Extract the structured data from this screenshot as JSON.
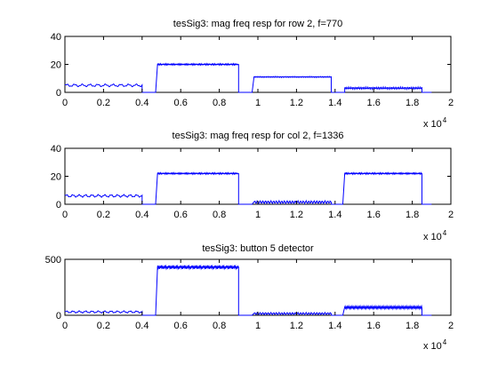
{
  "figure": {
    "background": "#ffffff",
    "line_color": "#0000ff"
  },
  "chart_data": [
    {
      "type": "line",
      "title": "tesSig3: mag freq resp for row 2, f=770",
      "xlabel": "",
      "ylabel": "",
      "xlim": [
        0,
        20000
      ],
      "ylim": [
        0,
        40
      ],
      "xticks": [
        0,
        2000,
        4000,
        6000,
        8000,
        10000,
        12000,
        14000,
        16000,
        18000,
        20000
      ],
      "xtick_labels": [
        "0",
        "0.2",
        "0.4",
        "0.6",
        "0.8",
        "1",
        "1.2",
        "1.4",
        "1.6",
        "1.8",
        "2"
      ],
      "yticks": [
        0,
        20,
        40
      ],
      "ytick_labels": [
        "0",
        "20",
        "40"
      ],
      "x_exponent": {
        "base": "x 10",
        "power": "4"
      },
      "grid": false,
      "series": [
        {
          "color": "#0000ff",
          "segments": [
            {
              "x0": 0,
              "x1": 4000,
              "level": 5,
              "ripple": 1.0,
              "period": 400
            },
            {
              "x0": 4000,
              "x1": 4700,
              "level": 0,
              "ripple": 0,
              "period": 400
            },
            {
              "x0": 4800,
              "x1": 9000,
              "level": 20,
              "ripple": 0.6,
              "period": 70
            },
            {
              "x0": 9000,
              "x1": 9700,
              "level": 0,
              "ripple": 0,
              "period": 400
            },
            {
              "x0": 9800,
              "x1": 13800,
              "level": 11,
              "ripple": 0.4,
              "period": 90
            },
            {
              "x0": 13800,
              "x1": 14500,
              "level": 0,
              "ripple": 0,
              "period": 400
            },
            {
              "x0": 14500,
              "x1": 18500,
              "level": 3,
              "ripple": 0.8,
              "period": 90
            },
            {
              "x0": 18500,
              "x1": 19000,
              "level": 0,
              "ripple": 0,
              "period": 400
            }
          ]
        }
      ]
    },
    {
      "type": "line",
      "title": "tesSig3: mag freq resp for col 2, f=1336",
      "xlabel": "",
      "ylabel": "",
      "xlim": [
        0,
        20000
      ],
      "ylim": [
        0,
        40
      ],
      "xticks": [
        0,
        2000,
        4000,
        6000,
        8000,
        10000,
        12000,
        14000,
        16000,
        18000,
        20000
      ],
      "xtick_labels": [
        "0",
        "0.2",
        "0.4",
        "0.6",
        "0.8",
        "1",
        "1.2",
        "1.4",
        "1.6",
        "1.8",
        "2"
      ],
      "yticks": [
        0,
        20,
        40
      ],
      "ytick_labels": [
        "0",
        "20",
        "40"
      ],
      "x_exponent": {
        "base": "x 10",
        "power": "4"
      },
      "grid": false,
      "series": [
        {
          "color": "#0000ff",
          "segments": [
            {
              "x0": 0,
              "x1": 4000,
              "level": 6,
              "ripple": 1.0,
              "period": 330
            },
            {
              "x0": 4000,
              "x1": 4700,
              "level": 0,
              "ripple": 0,
              "period": 400
            },
            {
              "x0": 4800,
              "x1": 9000,
              "level": 22,
              "ripple": 0.6,
              "period": 70
            },
            {
              "x0": 9000,
              "x1": 9700,
              "level": 0,
              "ripple": 0,
              "period": 400
            },
            {
              "x0": 9800,
              "x1": 13800,
              "level": 1.5,
              "ripple": 1.0,
              "period": 140
            },
            {
              "x0": 13800,
              "x1": 14400,
              "level": 0,
              "ripple": 0,
              "period": 400
            },
            {
              "x0": 14500,
              "x1": 18500,
              "level": 22,
              "ripple": 0.6,
              "period": 70
            },
            {
              "x0": 18500,
              "x1": 19000,
              "level": 0,
              "ripple": 0,
              "period": 400
            }
          ]
        }
      ]
    },
    {
      "type": "line",
      "title": "tesSig3: button 5 detector",
      "xlabel": "",
      "ylabel": "",
      "xlim": [
        0,
        20000
      ],
      "ylim": [
        0,
        500
      ],
      "xticks": [
        0,
        2000,
        4000,
        6000,
        8000,
        10000,
        12000,
        14000,
        16000,
        18000,
        20000
      ],
      "xtick_labels": [
        "0",
        "0.2",
        "0.4",
        "0.6",
        "0.8",
        "1",
        "1.2",
        "1.4",
        "1.6",
        "1.8",
        "2"
      ],
      "yticks": [
        0,
        500
      ],
      "ytick_labels": [
        "0",
        "500"
      ],
      "x_exponent": {
        "base": "x 10",
        "power": "4"
      },
      "grid": false,
      "series": [
        {
          "color": "#0000ff",
          "segments": [
            {
              "x0": 0,
              "x1": 4000,
              "level": 30,
              "ripple": 10,
              "period": 330
            },
            {
              "x0": 4000,
              "x1": 4700,
              "level": 0,
              "ripple": 0,
              "period": 400
            },
            {
              "x0": 4800,
              "x1": 9000,
              "level": 430,
              "ripple": 18,
              "period": 60
            },
            {
              "x0": 9000,
              "x1": 9700,
              "level": 0,
              "ripple": 0,
              "period": 400
            },
            {
              "x0": 9800,
              "x1": 13800,
              "level": 15,
              "ripple": 10,
              "period": 140
            },
            {
              "x0": 13800,
              "x1": 14400,
              "level": 0,
              "ripple": 0,
              "period": 400
            },
            {
              "x0": 14500,
              "x1": 18500,
              "level": 70,
              "ripple": 14,
              "period": 60
            },
            {
              "x0": 18500,
              "x1": 19000,
              "level": 0,
              "ripple": 0,
              "period": 400
            }
          ]
        }
      ]
    }
  ]
}
